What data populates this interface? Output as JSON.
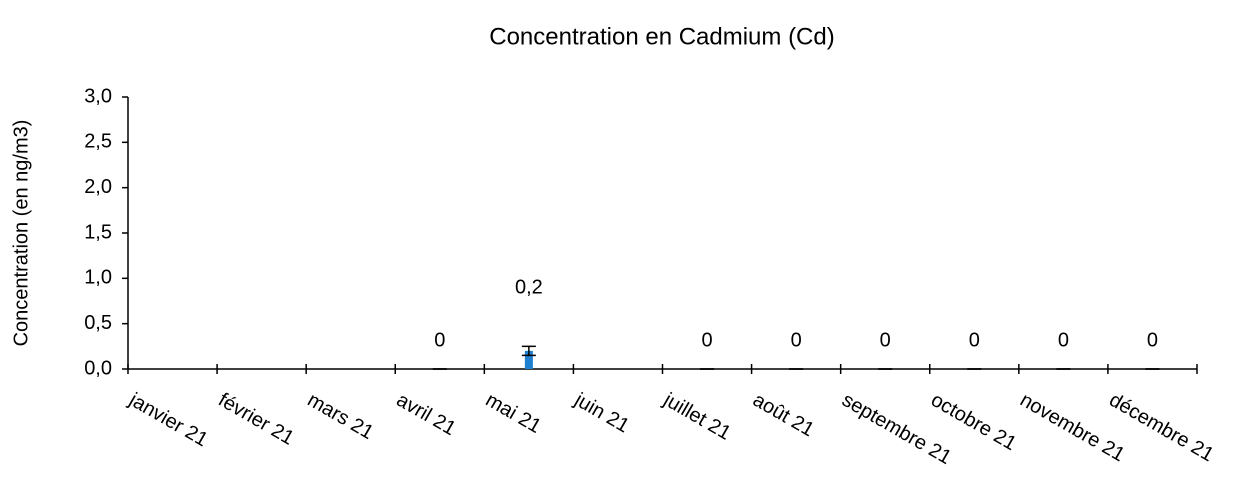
{
  "chart_data": {
    "type": "bar",
    "title": "Concentration en Cadmium (Cd)",
    "y_label": "Concentration (en ng/m3)",
    "categories": [
      "janvier 21",
      "février 21",
      "mars 21",
      "avril 21",
      "mai 21",
      "juin 21",
      "juillet 21",
      "août 21",
      "septembre 21",
      "octobre 21",
      "novembre 21",
      "décembre 21"
    ],
    "values": [
      null,
      null,
      null,
      0,
      0.2,
      null,
      0,
      0,
      0,
      0,
      0,
      0
    ],
    "errors": [
      null,
      null,
      null,
      0,
      0.05,
      null,
      0,
      0,
      0,
      0,
      0,
      0
    ],
    "value_labels": [
      null,
      null,
      null,
      "0",
      "0,2",
      null,
      "0",
      "0",
      "0",
      "0",
      "0",
      "0"
    ],
    "color": "#1f7fd0",
    "ylim": [
      0,
      3
    ],
    "yticks": [
      {
        "value": 0,
        "label": "0,0"
      },
      {
        "value": 0.5,
        "label": "0,5"
      },
      {
        "value": 1,
        "label": "1,0"
      },
      {
        "value": 1.5,
        "label": "1,5"
      },
      {
        "value": 2,
        "label": "2,0"
      },
      {
        "value": 2.5,
        "label": "2,5"
      },
      {
        "value": 3,
        "label": "3,0"
      }
    ],
    "grid": false
  }
}
